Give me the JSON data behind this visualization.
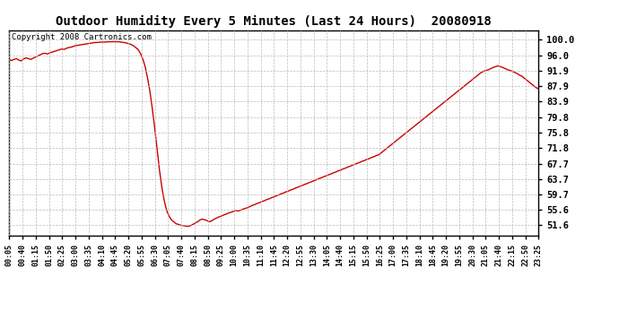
{
  "title": "Outdoor Humidity Every 5 Minutes (Last 24 Hours)  20080918",
  "copyright": "Copyright 2008 Cartronics.com",
  "line_color": "#cc0000",
  "background_color": "#ffffff",
  "grid_color": "#bbbbbb",
  "yticks": [
    100.0,
    96.0,
    91.9,
    87.9,
    83.9,
    79.8,
    75.8,
    71.8,
    67.7,
    63.7,
    59.7,
    55.6,
    51.6
  ],
  "ylim": [
    49.0,
    102.5
  ],
  "xtick_labels": [
    "00:05",
    "00:40",
    "01:15",
    "01:50",
    "02:25",
    "03:00",
    "03:35",
    "04:10",
    "04:45",
    "05:20",
    "05:55",
    "06:30",
    "07:05",
    "07:40",
    "08:15",
    "08:50",
    "09:25",
    "10:00",
    "10:35",
    "11:10",
    "11:45",
    "12:20",
    "12:55",
    "13:30",
    "14:05",
    "14:40",
    "15:15",
    "15:50",
    "16:25",
    "17:00",
    "17:35",
    "18:10",
    "18:45",
    "19:20",
    "19:55",
    "20:30",
    "21:05",
    "21:40",
    "22:15",
    "22:50",
    "23:25"
  ],
  "humidity_values": [
    94.8,
    94.6,
    94.9,
    95.1,
    94.7,
    94.5,
    95.0,
    95.3,
    95.1,
    94.9,
    95.2,
    95.5,
    95.8,
    96.1,
    96.4,
    96.5,
    96.3,
    96.6,
    96.8,
    97.0,
    97.2,
    97.4,
    97.6,
    97.5,
    97.8,
    98.0,
    98.1,
    98.3,
    98.5,
    98.6,
    98.7,
    98.8,
    98.9,
    99.0,
    99.1,
    99.2,
    99.3,
    99.3,
    99.4,
    99.4,
    99.4,
    99.5,
    99.5,
    99.5,
    99.5,
    99.5,
    99.5,
    99.4,
    99.3,
    99.2,
    99.0,
    98.8,
    98.5,
    98.0,
    97.5,
    96.5,
    95.0,
    93.0,
    90.0,
    86.5,
    82.0,
    77.0,
    71.5,
    66.0,
    61.5,
    58.0,
    55.5,
    54.0,
    53.0,
    52.5,
    52.0,
    51.8,
    51.6,
    51.5,
    51.4,
    51.3,
    51.5,
    51.8,
    52.2,
    52.5,
    53.0,
    53.2,
    53.0,
    52.8,
    52.5,
    52.8,
    53.2,
    53.5,
    53.8,
    54.0,
    54.3,
    54.5,
    54.8,
    55.0,
    55.2,
    55.5,
    55.3,
    55.5,
    55.8,
    56.0,
    56.2,
    56.5,
    56.8,
    57.0,
    57.3,
    57.5,
    57.8,
    58.0,
    58.3,
    58.5,
    58.8,
    59.0,
    59.3,
    59.5,
    59.8,
    60.0,
    60.3,
    60.5,
    60.8,
    61.0,
    61.3,
    61.5,
    61.8,
    62.0,
    62.3,
    62.5,
    62.8,
    63.0,
    63.3,
    63.5,
    63.8,
    64.0,
    64.3,
    64.5,
    64.8,
    65.0,
    65.3,
    65.5,
    65.8,
    66.0,
    66.3,
    66.5,
    66.8,
    67.0,
    67.3,
    67.5,
    67.8,
    68.0,
    68.3,
    68.5,
    68.8,
    69.0,
    69.3,
    69.5,
    69.8,
    70.0,
    70.5,
    71.0,
    71.5,
    72.0,
    72.5,
    73.0,
    73.5,
    74.0,
    74.5,
    75.0,
    75.5,
    76.0,
    76.5,
    77.0,
    77.5,
    78.0,
    78.5,
    79.0,
    79.5,
    80.0,
    80.5,
    81.0,
    81.5,
    82.0,
    82.5,
    83.0,
    83.5,
    84.0,
    84.5,
    85.0,
    85.5,
    86.0,
    86.5,
    87.0,
    87.5,
    88.0,
    88.5,
    89.0,
    89.5,
    90.0,
    90.5,
    91.0,
    91.5,
    91.8,
    92.0,
    92.2,
    92.5,
    92.8,
    93.0,
    93.2,
    93.0,
    92.8,
    92.5,
    92.2,
    92.0,
    91.8,
    91.5,
    91.2,
    90.8,
    90.5,
    90.0,
    89.5,
    89.0,
    88.5,
    88.0,
    87.5,
    87.2
  ]
}
